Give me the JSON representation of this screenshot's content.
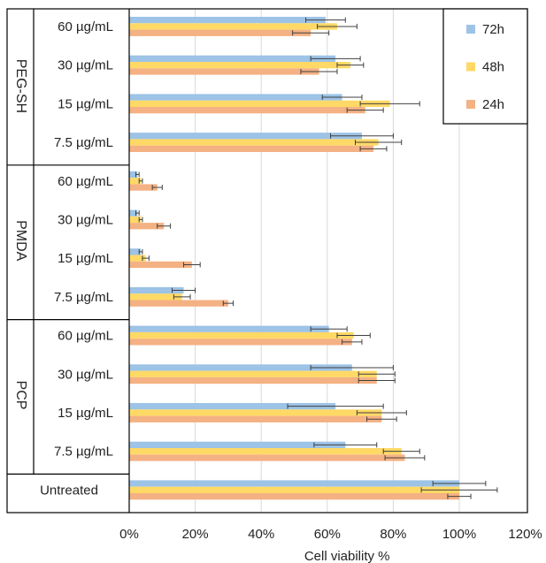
{
  "chart_data": {
    "type": "bar",
    "orientation": "horizontal",
    "title": "",
    "xlabel": "Cell viability %",
    "ylabel": "",
    "xlim": [
      0,
      120
    ],
    "x_ticks": [
      "0%",
      "20%",
      "40%",
      "60%",
      "80%",
      "100%",
      "120%"
    ],
    "grid": true,
    "legend_position": "top-right",
    "colors": {
      "72h": "#9dc3e6",
      "48h": "#ffd966",
      "24h": "#f4b183",
      "error": "#404040",
      "grid": "#d9d9d9",
      "frame": "#000000"
    },
    "legend": [
      "72h",
      "48h",
      "24h"
    ],
    "groups": [
      {
        "label": "PEG-SH",
        "categories": [
          "60 µg/mL",
          "30 µg/mL",
          "15 µg/mL",
          "7.5 µg/mL"
        ]
      },
      {
        "label": "PMDA",
        "categories": [
          "60 µg/mL",
          "30 µg/mL",
          "15 µg/mL",
          "7.5 µg/mL"
        ]
      },
      {
        "label": "PCP",
        "categories": [
          "60 µg/mL",
          "30 µg/mL",
          "15 µg/mL",
          "7.5 µg/mL"
        ]
      },
      {
        "label": "",
        "categories": [
          "Untreated"
        ]
      }
    ],
    "series": [
      {
        "name": "72h",
        "values": [
          59.5,
          62.5,
          64.5,
          70.5,
          2.5,
          2.5,
          3.5,
          16.5,
          60.5,
          67.5,
          62.5,
          65.5,
          100
        ],
        "errors": [
          6,
          7.5,
          6,
          9.5,
          0.5,
          0.5,
          0.5,
          3.5,
          5.5,
          12.5,
          14.5,
          9.5,
          8
        ]
      },
      {
        "name": "48h",
        "values": [
          63,
          67,
          79,
          75.5,
          3.5,
          3.5,
          5,
          16,
          68,
          75,
          76.5,
          82.5,
          100
        ],
        "errors": [
          6,
          4,
          9,
          7,
          0.5,
          0.5,
          1,
          2.5,
          5,
          5.5,
          7.5,
          5.5,
          11.5
        ]
      },
      {
        "name": "24h",
        "values": [
          55,
          57.5,
          71.5,
          74,
          8.5,
          10.5,
          19,
          30,
          67.5,
          75,
          76.5,
          83.5,
          100
        ],
        "errors": [
          5.5,
          5.5,
          5.5,
          4,
          1.5,
          2,
          2.5,
          1.5,
          3,
          5.5,
          4.5,
          6,
          3.5
        ]
      }
    ]
  }
}
